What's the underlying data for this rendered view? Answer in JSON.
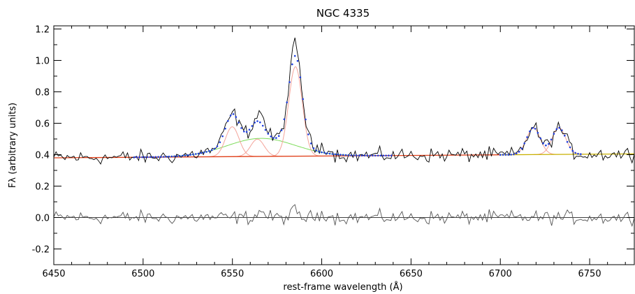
{
  "chart_data": {
    "type": "line",
    "title": "NGC 4335",
    "xlabel": "rest-frame wavelength (Å)",
    "ylabel": "Fλ (arbitrary units)",
    "xlim": [
      6450,
      6775
    ],
    "ylim": [
      -0.3,
      1.22
    ],
    "x_ticks": [
      6450,
      6500,
      6550,
      6600,
      6650,
      6700,
      6750
    ],
    "x_tick_labels": [
      "6450",
      "6500",
      "6550",
      "6600",
      "6650",
      "6700",
      "6750"
    ],
    "y_ticks": [
      -0.2,
      0.0,
      0.2,
      0.4,
      0.6,
      0.8,
      1.0,
      1.2
    ],
    "y_tick_labels": [
      "-0.2",
      "0.0",
      "0.2",
      "0.4",
      "0.6",
      "0.8",
      "1.0",
      "1.2"
    ],
    "colors": {
      "observed": "#000000",
      "total_fit": "#1f3fe0",
      "narrow_components": "#f4a49a",
      "broad_component": "#7ddc5a",
      "continuum_blue_side": "#e0401a",
      "continuum_red_side": "#c8b000",
      "residual": "#555555",
      "zero_line": "#000000"
    },
    "continuum": {
      "level_at_6450": 0.38,
      "level_at_6775": 0.405
    },
    "narrow_lines": [
      {
        "center": 6549.9,
        "peak": 0.19,
        "sigma": 3.8
      },
      {
        "center": 6564.0,
        "peak": 0.11,
        "sigma": 3.8
      },
      {
        "center": 6585.3,
        "peak": 0.57,
        "sigma": 3.8
      },
      {
        "center": 6718.5,
        "peak": 0.17,
        "sigma": 3.8
      },
      {
        "center": 6732.8,
        "peak": 0.17,
        "sigma": 3.8
      }
    ],
    "broad_line": {
      "center": 6566.0,
      "peak": 0.115,
      "sigma": 19.0
    },
    "observed_features": [
      {
        "x": 6550,
        "y": 0.72
      },
      {
        "x": 6565,
        "y": 0.67
      },
      {
        "x": 6585,
        "y": 1.07
      },
      {
        "x": 6719,
        "y": 0.57
      },
      {
        "x": 6731,
        "y": 0.64
      }
    ],
    "residual_range": [
      -0.07,
      0.1
    ]
  }
}
